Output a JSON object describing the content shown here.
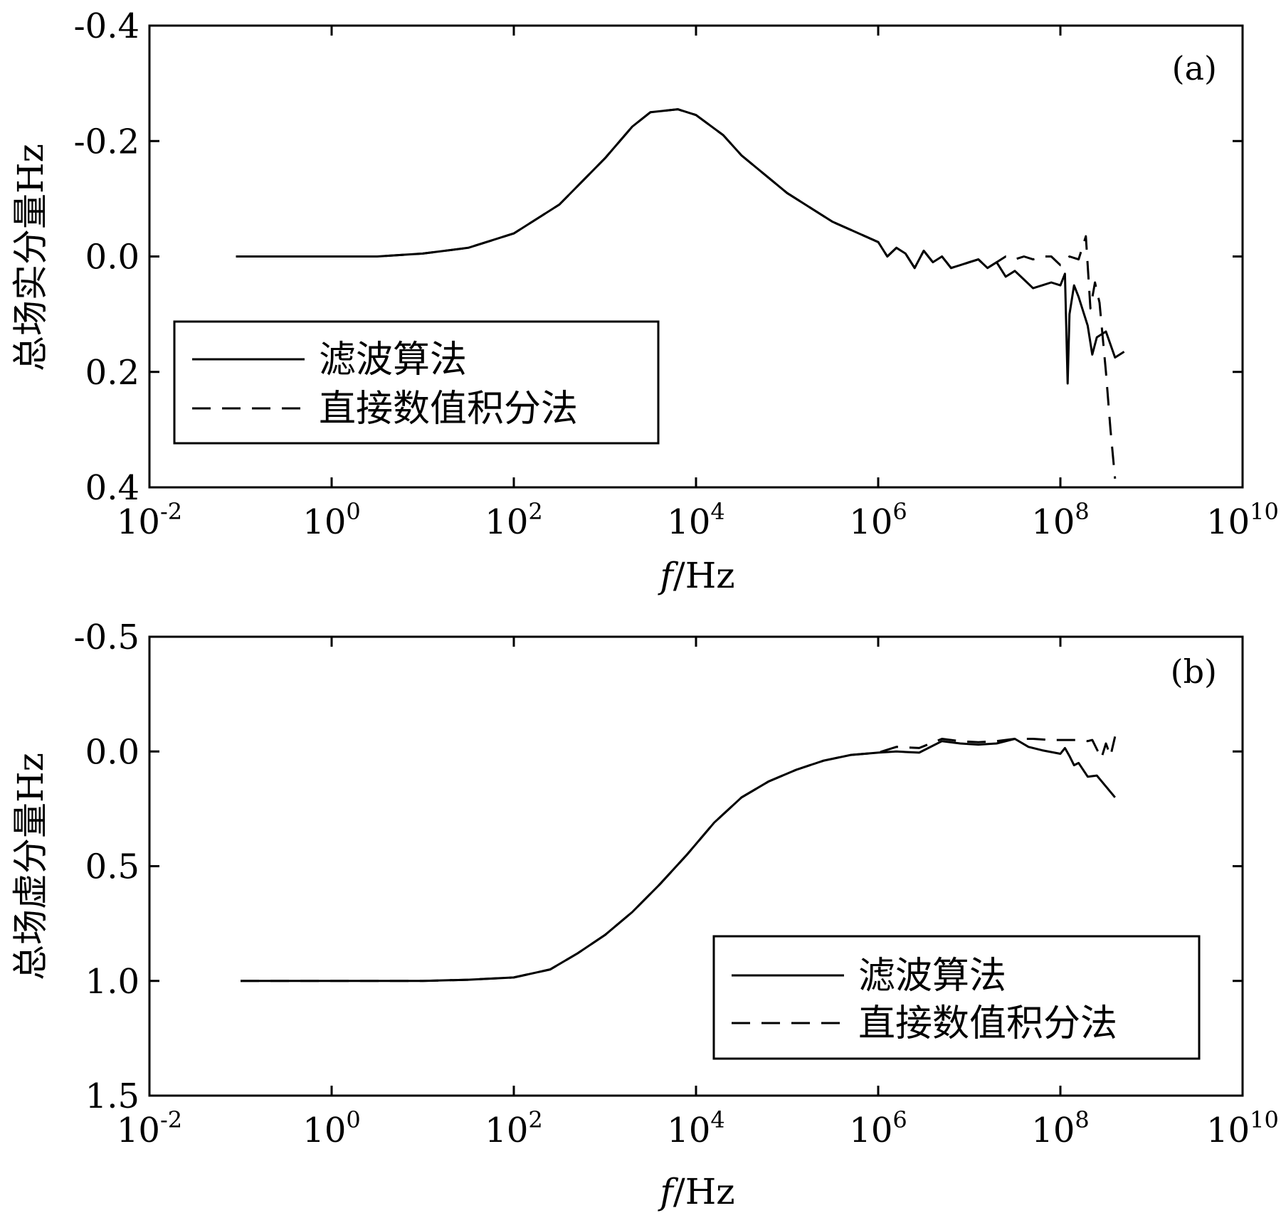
{
  "chart_data": [
    {
      "type": "line",
      "panel_label": "(a)",
      "xlabel_italic": "f",
      "xlabel_rest": "/Hz",
      "ylabel": "总场实分量Hz",
      "x_scale": "log",
      "xlim_exponent": [
        -2,
        10
      ],
      "x_tick_exponents": [
        "-2",
        "0",
        "2",
        "4",
        "6",
        "8",
        "10"
      ],
      "x_tick_base": "10",
      "ylim": [
        0.4,
        -0.4
      ],
      "y_axis_inverted": true,
      "y_ticks": [
        -0.4,
        -0.2,
        0.0,
        0.2,
        0.4
      ],
      "y_tick_labels": [
        "-0.4",
        "-0.2",
        "0.0",
        "0.2",
        "0.4"
      ],
      "legend": {
        "position": "lower-left",
        "entries": [
          {
            "label": "滤波算法",
            "style": "solid"
          },
          {
            "label": "直接数值积分法",
            "style": "dashed"
          }
        ]
      },
      "series": [
        {
          "name": "滤波算法",
          "style": "solid",
          "log10_x": [
            -1.05,
            0.0,
            0.5,
            1.0,
            1.5,
            2.0,
            2.5,
            3.0,
            3.3,
            3.5,
            3.8,
            4.0,
            4.3,
            4.5,
            5.0,
            5.5,
            6.0,
            6.1,
            6.2,
            6.3,
            6.4,
            6.5,
            6.6,
            6.7,
            6.8,
            6.9,
            7.0,
            7.1,
            7.2,
            7.3,
            7.4,
            7.5,
            7.6,
            7.7,
            7.8,
            7.9,
            8.0,
            8.05,
            8.08,
            8.1,
            8.15,
            8.2,
            8.3,
            8.35,
            8.4,
            8.5,
            8.6,
            8.7
          ],
          "values": [
            0.0,
            0.0,
            0.0,
            -0.005,
            -0.015,
            -0.04,
            -0.09,
            -0.17,
            -0.225,
            -0.25,
            -0.255,
            -0.245,
            -0.21,
            -0.175,
            -0.11,
            -0.06,
            -0.025,
            0.0,
            -0.015,
            -0.005,
            0.02,
            -0.01,
            0.01,
            0.0,
            0.02,
            0.015,
            0.01,
            0.005,
            0.02,
            0.01,
            0.035,
            0.025,
            0.04,
            0.055,
            0.05,
            0.045,
            0.05,
            0.03,
            0.22,
            0.1,
            0.05,
            0.07,
            0.12,
            0.17,
            0.14,
            0.13,
            0.175,
            0.165
          ]
        },
        {
          "name": "直接数值积分法",
          "style": "dashed",
          "log10_x": [
            -1.05,
            0.0,
            0.5,
            1.0,
            1.5,
            2.0,
            2.5,
            3.0,
            3.3,
            3.5,
            3.8,
            4.0,
            4.3,
            4.5,
            5.0,
            5.5,
            6.0,
            6.1,
            6.2,
            6.3,
            6.4,
            6.5,
            6.6,
            6.7,
            6.8,
            6.9,
            7.0,
            7.1,
            7.2,
            7.3,
            7.4,
            7.5,
            7.6,
            7.7,
            7.8,
            7.9,
            8.0,
            8.1,
            8.2,
            8.28,
            8.33,
            8.38,
            8.43,
            8.5,
            8.55,
            8.6
          ],
          "values": [
            0.0,
            0.0,
            0.0,
            -0.005,
            -0.015,
            -0.04,
            -0.09,
            -0.17,
            -0.225,
            -0.25,
            -0.255,
            -0.245,
            -0.21,
            -0.175,
            -0.11,
            -0.06,
            -0.025,
            0.0,
            -0.015,
            -0.005,
            0.02,
            -0.01,
            0.01,
            0.0,
            0.02,
            0.015,
            0.01,
            0.005,
            0.02,
            0.01,
            0.0,
            0.005,
            0.0,
            0.005,
            0.0,
            0.0,
            0.015,
            0.0,
            0.005,
            -0.035,
            0.09,
            0.045,
            0.08,
            0.2,
            0.3,
            0.385
          ]
        }
      ]
    },
    {
      "type": "line",
      "panel_label": "(b)",
      "xlabel_italic": "f",
      "xlabel_rest": "/Hz",
      "ylabel": "总场虚分量Hz",
      "x_scale": "log",
      "xlim_exponent": [
        -2,
        10
      ],
      "x_tick_exponents": [
        "-2",
        "0",
        "2",
        "4",
        "6",
        "8",
        "10"
      ],
      "x_tick_base": "10",
      "ylim": [
        1.5,
        -0.5
      ],
      "y_axis_inverted": true,
      "y_ticks": [
        -0.5,
        0.0,
        0.5,
        1.0,
        1.5
      ],
      "y_tick_labels": [
        "-0.5",
        "0.0",
        "0.5",
        "1.0",
        "1.5"
      ],
      "legend": {
        "position": "lower-right",
        "entries": [
          {
            "label": "滤波算法",
            "style": "solid"
          },
          {
            "label": "直接数值积分法",
            "style": "dashed"
          }
        ]
      },
      "series": [
        {
          "name": "滤波算法",
          "style": "solid",
          "log10_x": [
            -1.0,
            0.0,
            1.0,
            1.5,
            2.0,
            2.4,
            2.7,
            3.0,
            3.3,
            3.6,
            3.9,
            4.2,
            4.5,
            4.8,
            5.1,
            5.4,
            5.7,
            6.0,
            6.2,
            6.45,
            6.7,
            6.9,
            7.1,
            7.3,
            7.5,
            7.65,
            7.8,
            8.0,
            8.05,
            8.1,
            8.15,
            8.2,
            8.3,
            8.4,
            8.6
          ],
          "values": [
            1.0,
            1.0,
            1.0,
            0.995,
            0.985,
            0.95,
            0.88,
            0.8,
            0.7,
            0.58,
            0.45,
            0.31,
            0.2,
            0.13,
            0.08,
            0.04,
            0.015,
            0.005,
            0.0,
            0.005,
            -0.045,
            -0.035,
            -0.03,
            -0.035,
            -0.055,
            -0.02,
            -0.005,
            0.01,
            -0.015,
            0.02,
            0.06,
            0.05,
            0.11,
            0.105,
            0.2
          ]
        },
        {
          "name": "直接数值积分法",
          "style": "dashed",
          "log10_x": [
            -1.0,
            0.0,
            1.0,
            1.5,
            2.0,
            2.4,
            2.7,
            3.0,
            3.3,
            3.6,
            3.9,
            4.2,
            4.5,
            4.8,
            5.1,
            5.4,
            5.7,
            6.0,
            6.2,
            6.45,
            6.7,
            6.9,
            7.1,
            7.3,
            7.5,
            7.7,
            7.9,
            8.1,
            8.2,
            8.3,
            8.35,
            8.4,
            8.45,
            8.5,
            8.55,
            8.6
          ],
          "values": [
            1.0,
            1.0,
            1.0,
            0.995,
            0.985,
            0.95,
            0.88,
            0.8,
            0.7,
            0.58,
            0.45,
            0.31,
            0.2,
            0.13,
            0.08,
            0.04,
            0.015,
            0.005,
            -0.02,
            -0.015,
            -0.055,
            -0.045,
            -0.04,
            -0.045,
            -0.055,
            -0.055,
            -0.05,
            -0.05,
            -0.05,
            -0.045,
            -0.05,
            -0.01,
            0.03,
            -0.035,
            0.02,
            -0.065
          ]
        }
      ]
    }
  ]
}
